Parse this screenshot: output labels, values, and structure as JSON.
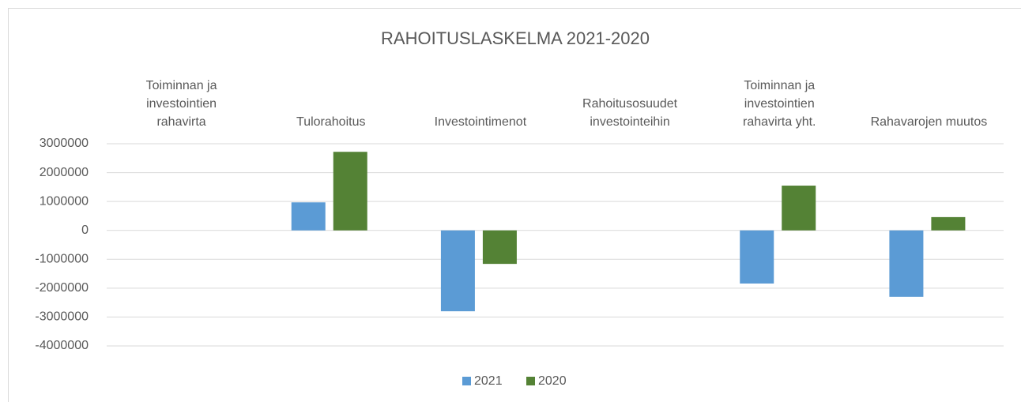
{
  "chart_data": {
    "type": "bar",
    "title": "RAHOITUSLASKELMA 2021-2020",
    "categories": [
      "Toiminnan ja investointien rahavirta",
      "Tulorahoitus",
      "Investointimenot",
      "Rahoitusosuudet investointeihin",
      "Toiminnan ja investointien rahavirta yht.",
      "Rahavarojen muutos"
    ],
    "series": [
      {
        "name": "2021",
        "color": "#5b9bd5",
        "values": [
          null,
          970000,
          -2800000,
          null,
          -1840000,
          -2300000
        ]
      },
      {
        "name": "2020",
        "color": "#548235",
        "values": [
          null,
          2720000,
          -1160000,
          null,
          1550000,
          460000
        ]
      }
    ],
    "ylim": [
      -4000000,
      3000000
    ],
    "yticks": [
      3000000,
      2000000,
      1000000,
      0,
      -1000000,
      -2000000,
      -3000000,
      -4000000
    ],
    "grid": true,
    "legend": "bottom"
  }
}
